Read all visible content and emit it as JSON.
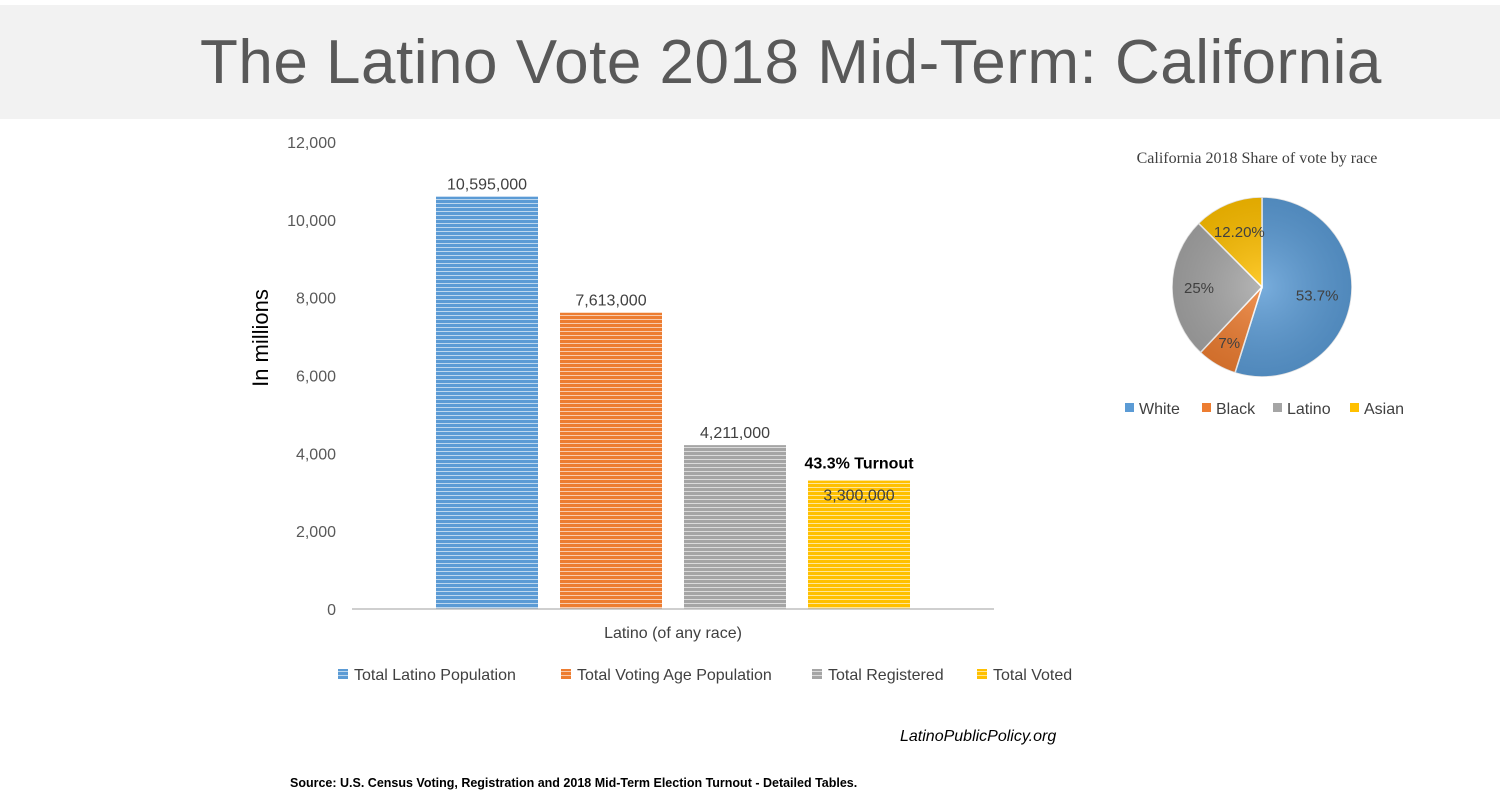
{
  "page": {
    "title": "The Latino Vote 2018 Mid-Term: California",
    "website": "LatinoPublicPolicy.org",
    "source": "Source: U.S. Census Voting, Registration and 2018 Mid-Term Election Turnout - Detailed Tables."
  },
  "chart_data": [
    {
      "type": "bar",
      "title": "",
      "xlabel": "",
      "ylabel": "In millions",
      "categories": [
        "Latino (of any race)"
      ],
      "ylim": [
        0,
        12000
      ],
      "yticks": [
        "0",
        "2,000",
        "4,000",
        "6,000",
        "8,000",
        "10,000",
        "12,000"
      ],
      "grid": false,
      "legend_position": "bottom",
      "annotation": "43.3% Turnout",
      "series": [
        {
          "name": "Total Latino Population",
          "values": [
            10595
          ],
          "label": "10,595,000",
          "color": "#5b9bd5"
        },
        {
          "name": "Total Voting Age Population",
          "values": [
            7613
          ],
          "label": "7,613,000",
          "color": "#ed7d31"
        },
        {
          "name": "Total Registered",
          "values": [
            4211
          ],
          "label": "4,211,000",
          "color": "#a5a5a5"
        },
        {
          "name": "Total Voted",
          "values": [
            3300
          ],
          "label": "3,300,000",
          "color": "#ffc000"
        }
      ]
    },
    {
      "type": "pie",
      "title": "California 2018 Share of vote by race",
      "legend_position": "bottom",
      "slices": [
        {
          "name": "White",
          "value": 53.7,
          "label": "53.7%",
          "color": "#5b9bd5"
        },
        {
          "name": "Black",
          "value": 7,
          "label": "7%",
          "color": "#ed7d31"
        },
        {
          "name": "Latino",
          "value": 25,
          "label": "25%",
          "color": "#a5a5a5"
        },
        {
          "name": "Asian",
          "value": 12.2,
          "label": "12.20%",
          "color": "#ffc000"
        }
      ]
    }
  ]
}
